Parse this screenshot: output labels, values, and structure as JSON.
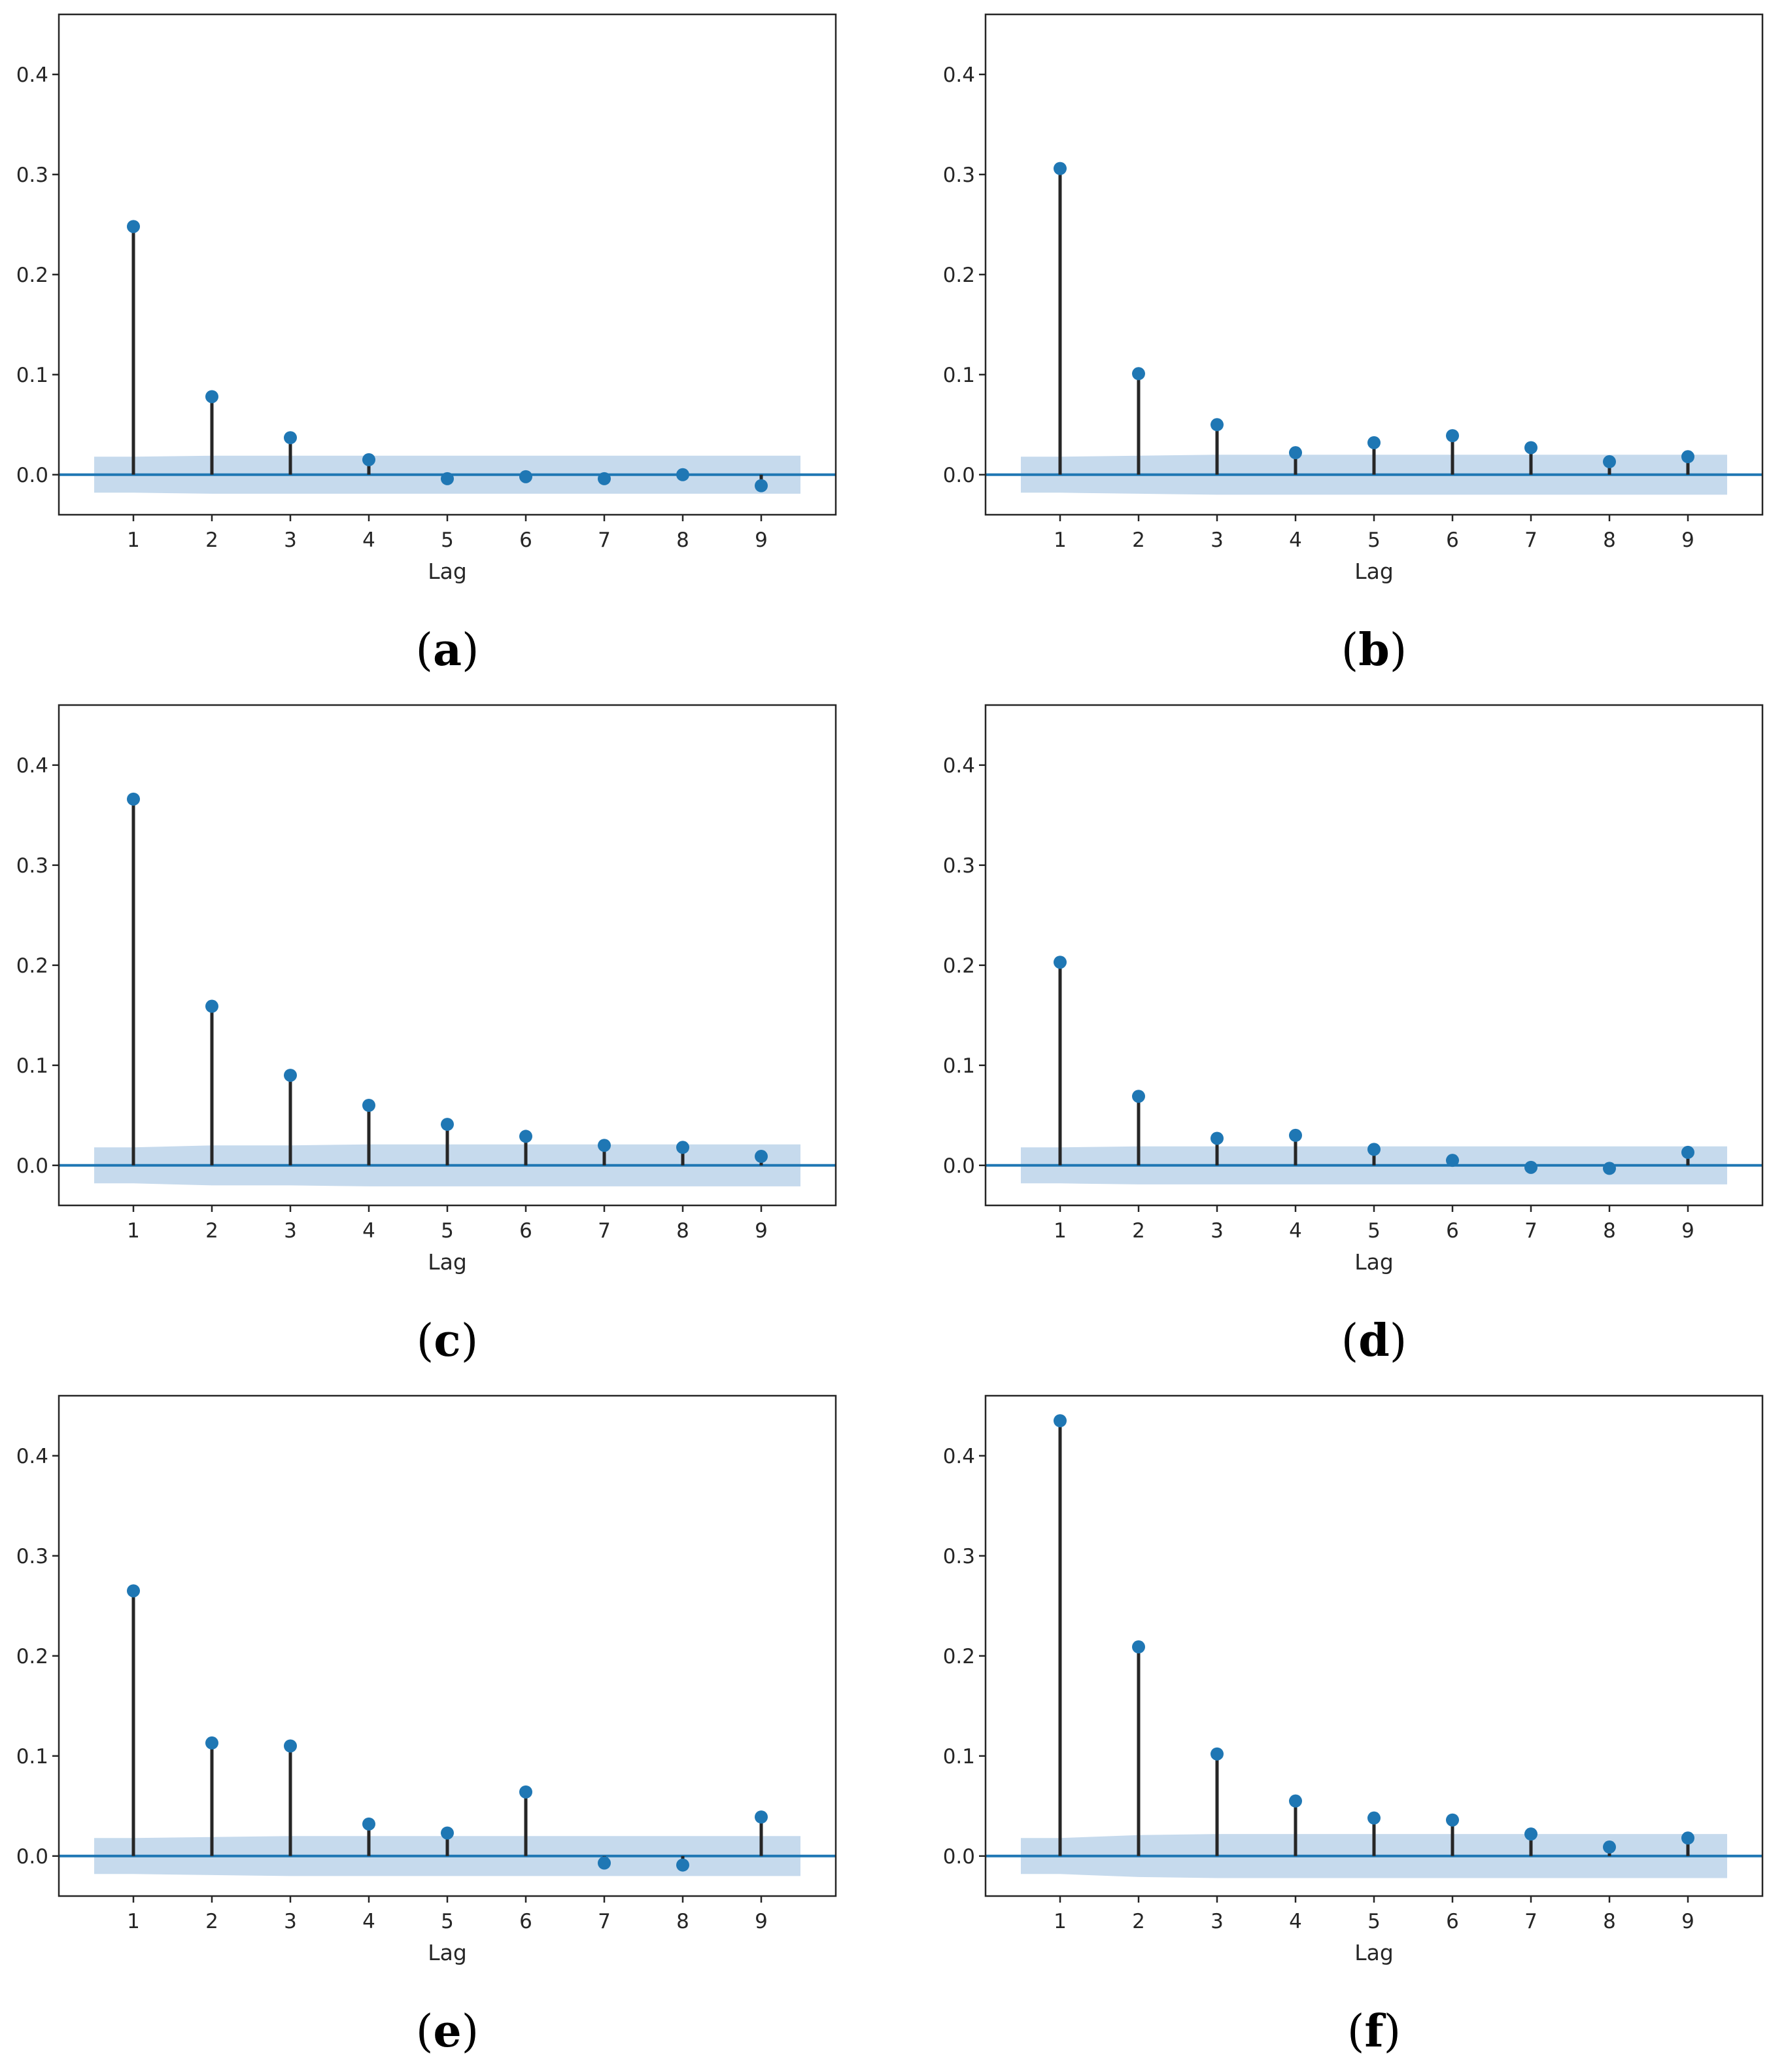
{
  "colors": {
    "marker": "#1f77b4",
    "stem": "#262626",
    "zero_line": "#1f77b4",
    "confidence_band": "#a8c6e3",
    "frame": "#262626"
  },
  "chart_data": [
    {
      "type": "stem",
      "caption": "a",
      "xlabel": "Lag",
      "ylabel": "",
      "ylim": [
        -0.04,
        0.46
      ],
      "yticks": [
        "0.0",
        "0.1",
        "0.2",
        "0.3",
        "0.4"
      ],
      "xticks": [
        "1",
        "2",
        "3",
        "4",
        "5",
        "6",
        "7",
        "8",
        "9"
      ],
      "lags": [
        1,
        2,
        3,
        4,
        5,
        6,
        7,
        8,
        9
      ],
      "values": [
        0.248,
        0.078,
        0.037,
        0.015,
        -0.004,
        -0.002,
        -0.004,
        0.0,
        -0.011
      ],
      "confidence_band": [
        0.018,
        0.019,
        0.019,
        0.019,
        0.019,
        0.019,
        0.019,
        0.019,
        0.019
      ]
    },
    {
      "type": "stem",
      "caption": "b",
      "xlabel": "Lag",
      "ylabel": "",
      "ylim": [
        -0.04,
        0.46
      ],
      "yticks": [
        "0.0",
        "0.1",
        "0.2",
        "0.3",
        "0.4"
      ],
      "xticks": [
        "1",
        "2",
        "3",
        "4",
        "5",
        "6",
        "7",
        "8",
        "9"
      ],
      "lags": [
        1,
        2,
        3,
        4,
        5,
        6,
        7,
        8,
        9
      ],
      "values": [
        0.306,
        0.101,
        0.05,
        0.022,
        0.032,
        0.039,
        0.027,
        0.013,
        0.018
      ],
      "confidence_band": [
        0.018,
        0.019,
        0.02,
        0.02,
        0.02,
        0.02,
        0.02,
        0.02,
        0.02
      ]
    },
    {
      "type": "stem",
      "caption": "c",
      "xlabel": "Lag",
      "ylabel": "",
      "ylim": [
        -0.04,
        0.46
      ],
      "yticks": [
        "0.0",
        "0.1",
        "0.2",
        "0.3",
        "0.4"
      ],
      "xticks": [
        "1",
        "2",
        "3",
        "4",
        "5",
        "6",
        "7",
        "8",
        "9"
      ],
      "lags": [
        1,
        2,
        3,
        4,
        5,
        6,
        7,
        8,
        9
      ],
      "values": [
        0.366,
        0.159,
        0.09,
        0.06,
        0.041,
        0.029,
        0.02,
        0.018,
        0.009
      ],
      "confidence_band": [
        0.018,
        0.02,
        0.02,
        0.021,
        0.021,
        0.021,
        0.021,
        0.021,
        0.021
      ]
    },
    {
      "type": "stem",
      "caption": "d",
      "xlabel": "Lag",
      "ylabel": "",
      "ylim": [
        -0.04,
        0.46
      ],
      "yticks": [
        "0.0",
        "0.1",
        "0.2",
        "0.3",
        "0.4"
      ],
      "xticks": [
        "1",
        "2",
        "3",
        "4",
        "5",
        "6",
        "7",
        "8",
        "9"
      ],
      "lags": [
        1,
        2,
        3,
        4,
        5,
        6,
        7,
        8,
        9
      ],
      "values": [
        0.203,
        0.069,
        0.027,
        0.03,
        0.016,
        0.005,
        -0.002,
        -0.003,
        0.013
      ],
      "confidence_band": [
        0.018,
        0.019,
        0.019,
        0.019,
        0.019,
        0.019,
        0.019,
        0.019,
        0.019
      ]
    },
    {
      "type": "stem",
      "caption": "e",
      "xlabel": "Lag",
      "ylabel": "",
      "ylim": [
        -0.04,
        0.46
      ],
      "yticks": [
        "0.0",
        "0.1",
        "0.2",
        "0.3",
        "0.4"
      ],
      "xticks": [
        "1",
        "2",
        "3",
        "4",
        "5",
        "6",
        "7",
        "8",
        "9"
      ],
      "lags": [
        1,
        2,
        3,
        4,
        5,
        6,
        7,
        8,
        9
      ],
      "values": [
        0.265,
        0.113,
        0.11,
        0.032,
        0.023,
        0.064,
        -0.007,
        -0.009,
        0.039
      ],
      "confidence_band": [
        0.018,
        0.019,
        0.02,
        0.02,
        0.02,
        0.02,
        0.02,
        0.02,
        0.02
      ]
    },
    {
      "type": "stem",
      "caption": "f",
      "xlabel": "Lag",
      "ylabel": "",
      "ylim": [
        -0.04,
        0.46
      ],
      "yticks": [
        "0.0",
        "0.1",
        "0.2",
        "0.3",
        "0.4"
      ],
      "xticks": [
        "1",
        "2",
        "3",
        "4",
        "5",
        "6",
        "7",
        "8",
        "9"
      ],
      "lags": [
        1,
        2,
        3,
        4,
        5,
        6,
        7,
        8,
        9
      ],
      "values": [
        0.435,
        0.209,
        0.102,
        0.055,
        0.038,
        0.036,
        0.022,
        0.009,
        0.018
      ],
      "confidence_band": [
        0.018,
        0.021,
        0.022,
        0.022,
        0.022,
        0.022,
        0.022,
        0.022,
        0.022
      ]
    }
  ]
}
